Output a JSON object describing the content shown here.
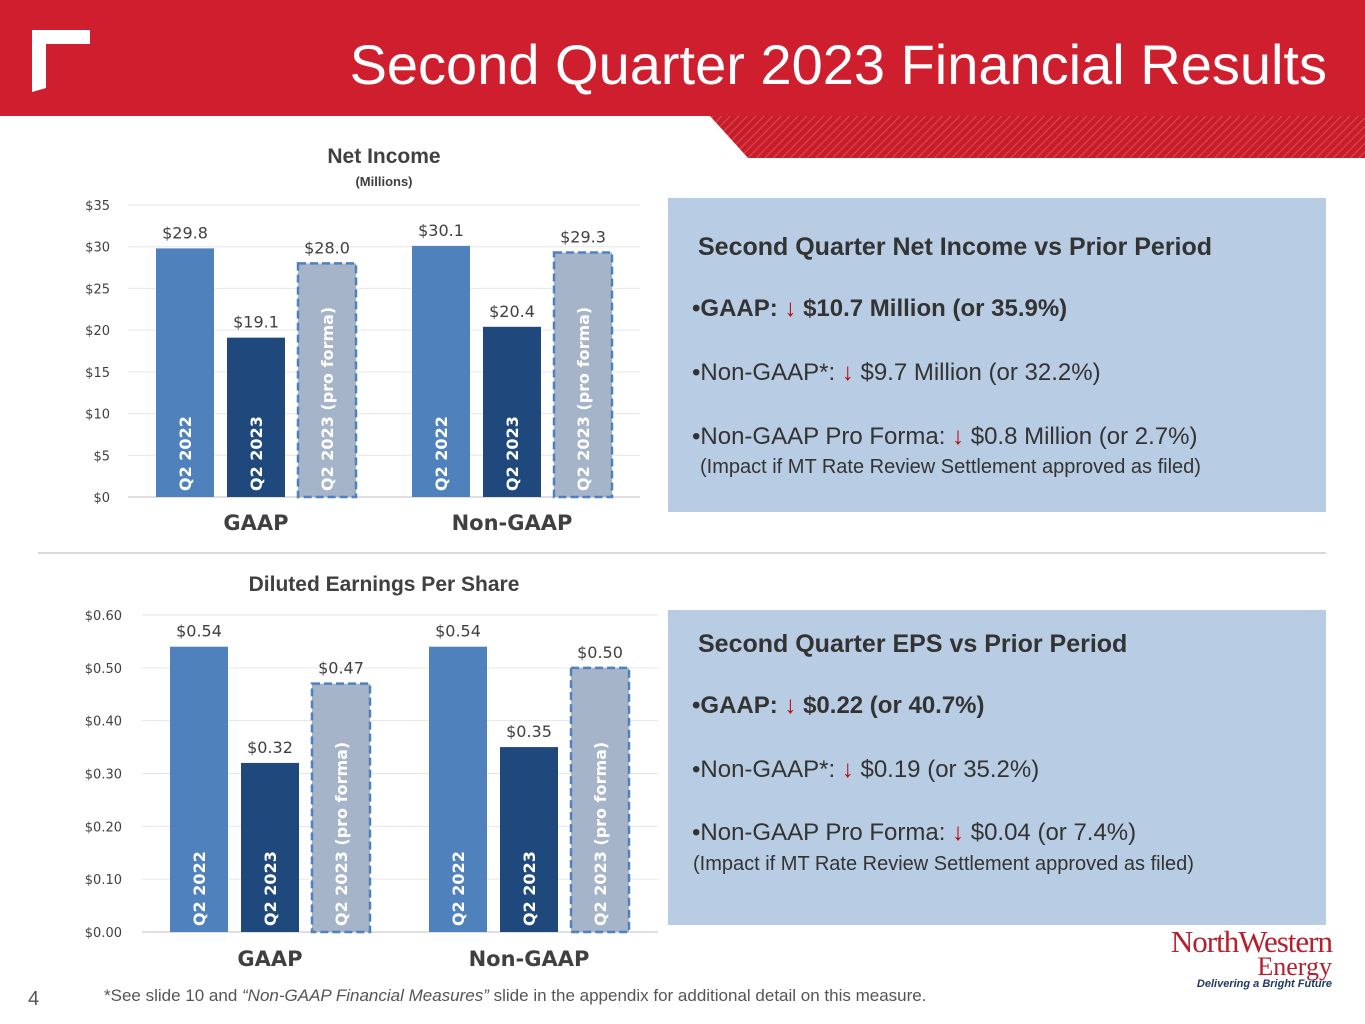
{
  "header": {
    "title": "Second Quarter 2023 Financial Results",
    "color": "#cf1f2e"
  },
  "chart_data": [
    {
      "type": "bar",
      "title": "Net Income",
      "subtitle": "(Millions)",
      "groups": [
        "GAAP",
        "Non-GAAP"
      ],
      "categories": [
        "Q2 2022",
        "Q2 2023",
        "Q2 2023 (pro forma)"
      ],
      "series": [
        {
          "group": "GAAP",
          "values": [
            29.8,
            19.1,
            28.0
          ],
          "labels": [
            "$29.8",
            "$19.1",
            "$28.0"
          ]
        },
        {
          "group": "Non-GAAP",
          "values": [
            30.1,
            20.4,
            29.3
          ],
          "labels": [
            "$30.1",
            "$20.4",
            "$29.3"
          ]
        }
      ],
      "ylim": [
        0,
        35
      ],
      "yticks": [
        0,
        5,
        10,
        15,
        20,
        25,
        30,
        35
      ],
      "ytick_labels": [
        "$0",
        "$5",
        "$10",
        "$15",
        "$20",
        "$25",
        "$30",
        "$35"
      ],
      "colors": [
        "#4f81bd",
        "#1f497d",
        "#a5b4c8"
      ],
      "pro_forma_border": "#4f81bd",
      "grid": true
    },
    {
      "type": "bar",
      "title": "Diluted Earnings Per Share",
      "subtitle": "",
      "groups": [
        "GAAP",
        "Non-GAAP"
      ],
      "categories": [
        "Q2 2022",
        "Q2 2023",
        "Q2 2023 (pro forma)"
      ],
      "series": [
        {
          "group": "GAAP",
          "values": [
            0.54,
            0.32,
            0.47
          ],
          "labels": [
            "$0.54",
            "$0.32",
            "$0.47"
          ]
        },
        {
          "group": "Non-GAAP",
          "values": [
            0.54,
            0.35,
            0.5
          ],
          "labels": [
            "$0.54",
            "$0.35",
            "$0.50"
          ]
        }
      ],
      "ylim": [
        0,
        0.6
      ],
      "yticks": [
        0,
        0.1,
        0.2,
        0.3,
        0.4,
        0.5,
        0.6
      ],
      "ytick_labels": [
        "$0.00",
        "$0.10",
        "$0.20",
        "$0.30",
        "$0.40",
        "$0.50",
        "$0.60"
      ],
      "colors": [
        "#4f81bd",
        "#1f497d",
        "#a5b4c8"
      ],
      "pro_forma_border": "#4f81bd",
      "grid": true
    }
  ],
  "net_income_box": {
    "title": "Second Quarter Net Income vs Prior Period",
    "gaap_prefix": "•GAAP:",
    "gaap_value": "$10.7 Million (or 35.9%)",
    "nongaap_prefix": "•Non-GAAP*:",
    "nongaap_value": "$9.7 Million (or 32.2%)",
    "proforma_prefix": "•Non-GAAP Pro Forma:",
    "proforma_value": "$0.8 Million (or 2.7%)",
    "note": "(Impact if MT Rate Review Settlement approved as filed)",
    "arrow": "↓"
  },
  "eps_box": {
    "title": "Second Quarter EPS vs Prior Period",
    "gaap_prefix": "•GAAP:",
    "gaap_value": "$0.22 (or 40.7%)",
    "nongaap_prefix": "•Non-GAAP*:",
    "nongaap_value": "$0.19 (or 35.2%)",
    "proforma_prefix": "•Non-GAAP Pro Forma:",
    "proforma_value": "$0.04 (or 7.4%)",
    "note": "(Impact if MT Rate Review Settlement approved as filed)",
    "arrow": "↓"
  },
  "footer": {
    "page_number": "4",
    "footnote_a": "*See slide 10 and ",
    "footnote_b": "“Non-GAAP Financial Measures”",
    "footnote_c": " slide in the appendix for additional detail on this measure."
  },
  "brand": {
    "name": "NorthWestern",
    "sub": "Energy",
    "tagline": "Delivering a Bright Future",
    "color": "#b5202e"
  }
}
